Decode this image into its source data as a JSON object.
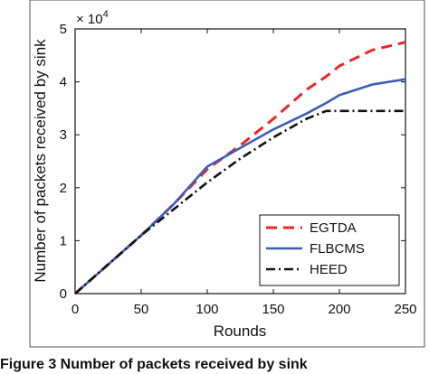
{
  "chart_data": {
    "type": "line",
    "xlabel": "Rounds",
    "ylabel": "Number of packets received by sink",
    "y_multiplier": "× 10",
    "y_multiplier_exponent": "4",
    "xlim": [
      0,
      250
    ],
    "ylim": [
      0,
      5
    ],
    "x_ticks": [
      0,
      50,
      100,
      150,
      200,
      250
    ],
    "y_ticks": [
      0,
      1,
      2,
      3,
      4,
      5
    ],
    "grid": false,
    "legend_position": "bottom-right",
    "x": [
      0,
      25,
      50,
      75,
      100,
      125,
      150,
      175,
      190,
      200,
      225,
      250
    ],
    "series": [
      {
        "name": "EGTDA",
        "color": "#e8262b",
        "style": "dashed",
        "values": [
          0,
          0.55,
          1.1,
          1.7,
          2.35,
          2.8,
          3.3,
          3.85,
          4.1,
          4.3,
          4.6,
          4.75
        ]
      },
      {
        "name": "FLBCMS",
        "color": "#3a5fb4",
        "style": "solid",
        "values": [
          0,
          0.55,
          1.1,
          1.7,
          2.4,
          2.75,
          3.1,
          3.4,
          3.6,
          3.75,
          3.95,
          4.05
        ]
      },
      {
        "name": "HEED",
        "color": "#111111",
        "style": "dashdot",
        "values": [
          0,
          0.55,
          1.1,
          1.6,
          2.1,
          2.55,
          2.95,
          3.3,
          3.45,
          3.45,
          3.45,
          3.45
        ]
      }
    ]
  },
  "caption": "Figure 3  Number of packets received by sink"
}
